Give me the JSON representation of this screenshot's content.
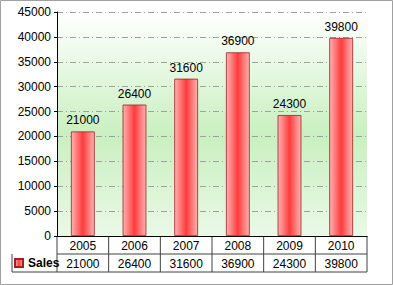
{
  "chart_data": {
    "type": "bar",
    "categories": [
      "2005",
      "2006",
      "2007",
      "2008",
      "2009",
      "2010"
    ],
    "series": [
      {
        "name": "Sales",
        "color": "#ff3b3b",
        "values": [
          21000,
          26400,
          31600,
          36900,
          24300,
          39800
        ]
      }
    ],
    "ylim": [
      0,
      45000
    ],
    "yticks": [
      0,
      5000,
      10000,
      15000,
      20000,
      25000,
      30000,
      35000,
      40000,
      45000
    ],
    "grid": true,
    "data_labels": true,
    "legend": "bottom"
  }
}
